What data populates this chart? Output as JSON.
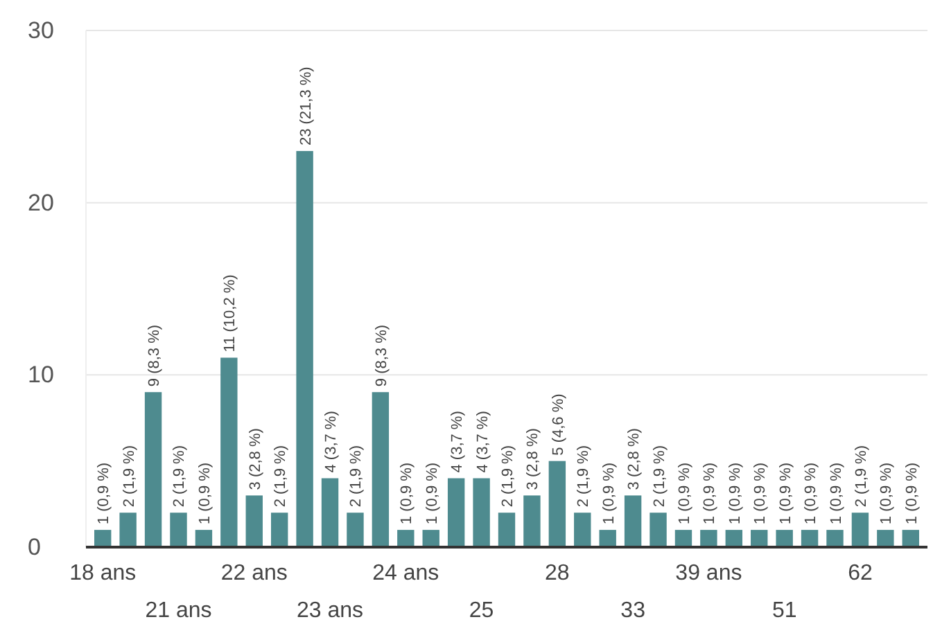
{
  "chart_data": {
    "type": "bar",
    "categories": [
      "18 ans",
      null,
      null,
      "21 ans",
      null,
      null,
      "22 ans",
      null,
      null,
      "23 ans",
      null,
      null,
      "24 ans",
      null,
      null,
      "25",
      null,
      null,
      "28",
      null,
      null,
      "33",
      null,
      null,
      "39 ans",
      null,
      null,
      "51",
      null,
      null,
      "62",
      null,
      null
    ],
    "values": [
      1,
      2,
      9,
      2,
      1,
      11,
      3,
      2,
      23,
      4,
      2,
      9,
      1,
      1,
      4,
      4,
      2,
      3,
      5,
      2,
      1,
      3,
      2,
      1,
      1,
      1,
      1,
      1,
      1,
      1,
      2,
      1,
      1
    ],
    "value_labels": [
      "1 (0,9 %)",
      "2 (1,9 %)",
      "9 (8,3 %)",
      "2 (1,9 %)",
      "1 (0,9 %)",
      "11 (10,2 %)",
      "3 (2,8 %)",
      "2 (1,9 %)",
      "23 (21,3 %)",
      "4 (3,7 %)",
      "2 (1,9 %)",
      "9 (8,3 %)",
      "1 (0,9 %)",
      "1 (0,9 %)",
      "4 (3,7 %)",
      "4 (3,7 %)",
      "2 (1,9 %)",
      "3 (2,8 %)",
      "5 (4,6 %)",
      "2 (1,9 %)",
      "1 (0,9 %)",
      "3 (2,8 %)",
      "2 (1,9 %)",
      "1 (0,9 %)",
      "1 (0,9 %)",
      "1 (0,9 %)",
      "1 (0,9 %)",
      "1 (0,9 %)",
      "1 (0,9 %)",
      "1 (0,9 %)",
      "2 (1,9 %)",
      "1 (0,9 %)",
      "1 (0,9 %)"
    ],
    "color": "#4e8b8f",
    "ylim": [
      0,
      30
    ],
    "yticks": [
      0,
      10,
      20,
      30
    ],
    "grid": "y"
  }
}
